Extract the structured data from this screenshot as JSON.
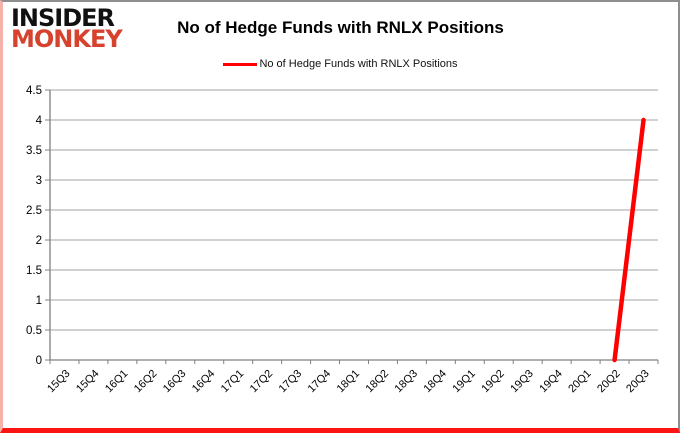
{
  "logo": {
    "line1": "INSIDER",
    "line2": "MONKEY",
    "line2_color": "#d6422e"
  },
  "header": {
    "title": "No of Hedge Funds with RNLX Positions"
  },
  "legend": {
    "label": "No of Hedge Funds with RNLX Positions",
    "line_color": "#fe0000"
  },
  "chart_data": {
    "type": "line",
    "title": "No of Hedge Funds with RNLX Positions",
    "categories": [
      "15Q3",
      "15Q4",
      "16Q1",
      "16Q2",
      "16Q3",
      "16Q4",
      "17Q1",
      "17Q2",
      "17Q3",
      "17Q4",
      "18Q1",
      "18Q2",
      "18Q3",
      "18Q4",
      "19Q1",
      "19Q2",
      "19Q3",
      "19Q4",
      "20Q1",
      "20Q2",
      "20Q3"
    ],
    "values": [
      null,
      null,
      null,
      null,
      null,
      null,
      null,
      null,
      null,
      null,
      null,
      null,
      null,
      null,
      null,
      null,
      null,
      null,
      null,
      0,
      4
    ],
    "xlabel": "",
    "ylabel": "",
    "ylim": [
      0,
      4.5
    ],
    "ytick_step": 0.5,
    "grid": true,
    "legend_position": "top-center",
    "series_color": "#fe0000",
    "grid_color": "#a3a3a3",
    "axis_color": "#808080",
    "tick_label_color": "#000000"
  }
}
